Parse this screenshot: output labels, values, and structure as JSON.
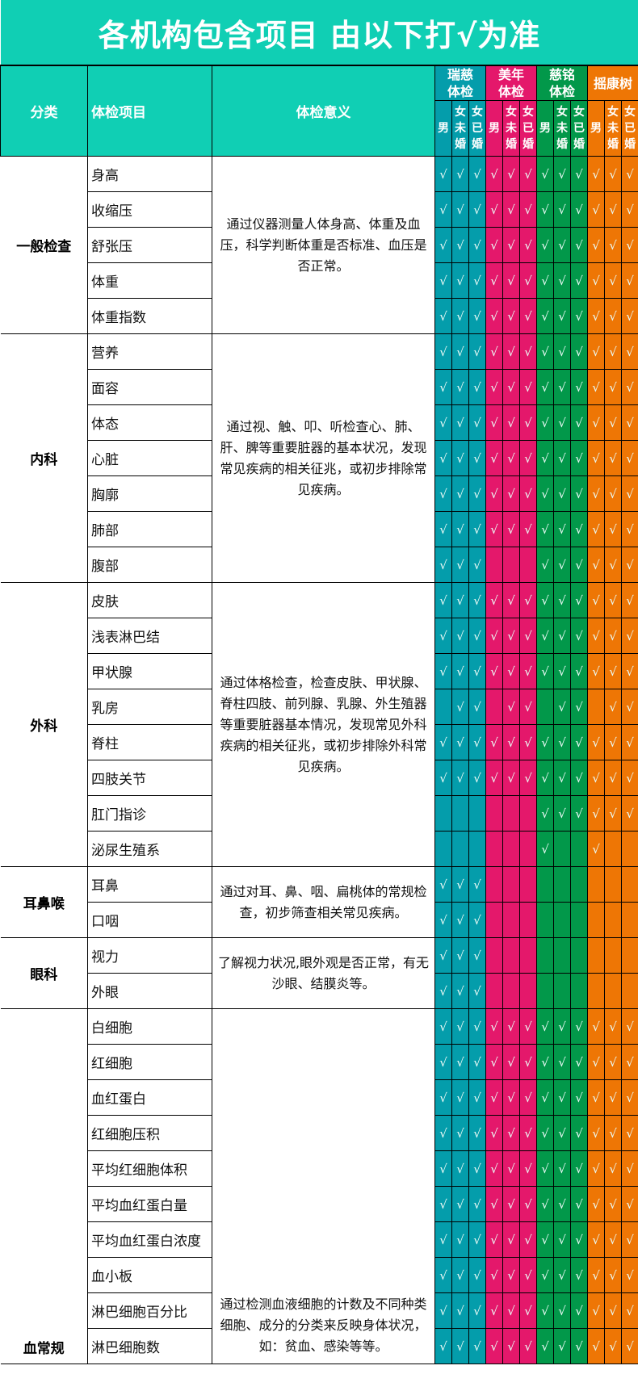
{
  "title": "各机构包含项目 由以下打√为准",
  "headers": {
    "category": "分类",
    "item": "体检项目",
    "meaning": "体检意义"
  },
  "orgs": [
    {
      "name": "瑞慈体检",
      "color": "#049dab"
    },
    {
      "name": "美年体检",
      "color": "#e4186b"
    },
    {
      "name": "慈铭体检",
      "color": "#02984a"
    },
    {
      "name": "摇康树",
      "color": "#ee7605"
    }
  ],
  "subheaders": [
    "男",
    "女未婚",
    "女已婚"
  ],
  "check_mark": "√",
  "header_bg": "#10cfb4",
  "groups": [
    {
      "category": "一般检查",
      "description": "通过仪器测量人体身高、体重及血压，科学判断体重是否标准、血压是否正常。",
      "items": [
        {
          "name": "身高",
          "checks": "111111111111"
        },
        {
          "name": "收缩压",
          "checks": "111111111111"
        },
        {
          "name": "舒张压",
          "checks": "111111111111"
        },
        {
          "name": "体重",
          "checks": "111111111111"
        },
        {
          "name": "体重指数",
          "checks": "111111111111"
        }
      ]
    },
    {
      "category": "内科",
      "description": "通过视、触、叩、听检查心、肺、肝、脾等重要脏器的基本状况，发现常见疾病的相关征兆，或初步排除常见疾病。",
      "items": [
        {
          "name": "营养",
          "checks": "111111111111"
        },
        {
          "name": "面容",
          "checks": "111111111111"
        },
        {
          "name": "体态",
          "checks": "111111111111"
        },
        {
          "name": "心脏",
          "checks": "111111111111"
        },
        {
          "name": "胸廓",
          "checks": "111111111111"
        },
        {
          "name": "肺部",
          "checks": "111111111111"
        },
        {
          "name": "腹部",
          "checks": "111000111111"
        }
      ]
    },
    {
      "category": "外科",
      "description": "通过体格检查，检查皮肤、甲状腺、脊柱四肢、前列腺、乳腺、外生殖器等重要脏器基本情况，发现常见外科疾病的相关征兆，或初步排除外科常见疾病。",
      "items": [
        {
          "name": "皮肤",
          "checks": "111111111111"
        },
        {
          "name": "浅表淋巴结",
          "checks": "111111111111"
        },
        {
          "name": "甲状腺",
          "checks": "111111111111"
        },
        {
          "name": "乳房",
          "checks": "011011011011"
        },
        {
          "name": "脊柱",
          "checks": "111111111111"
        },
        {
          "name": "四肢关节",
          "checks": "111111111111"
        },
        {
          "name": "肛门指诊",
          "checks": "000000111111"
        },
        {
          "name": "泌尿生殖系",
          "checks": "000000100100"
        }
      ]
    },
    {
      "category": "耳鼻喉",
      "description": "通过对耳、鼻、咽、扁桃体的常规检查，初步筛查相关常见疾病。",
      "items": [
        {
          "name": "耳鼻",
          "checks": "111000000000"
        },
        {
          "name": "口咽",
          "checks": "111000000000"
        }
      ]
    },
    {
      "category": "眼科",
      "description": "了解视力状况,眼外观是否正常，有无沙眼、结膜炎等。",
      "items": [
        {
          "name": "视力",
          "checks": "111000000000"
        },
        {
          "name": "外眼",
          "checks": "111000000000"
        }
      ]
    },
    {
      "category": "血常规",
      "description": "通过检测血液细胞的计数及不同种类细胞、成分的分类来反映身体状况，如：贫血、感染等等。",
      "items": [
        {
          "name": "白细胞",
          "checks": "111111111111"
        },
        {
          "name": "红细胞",
          "checks": "111111111111"
        },
        {
          "name": "血红蛋白",
          "checks": "111111111111"
        },
        {
          "name": "红细胞压积",
          "checks": "111111111111"
        },
        {
          "name": "平均红细胞体积",
          "checks": "111111111111"
        },
        {
          "name": "平均血红蛋白量",
          "checks": "111111111111"
        },
        {
          "name": "平均血红蛋白浓度",
          "checks": "111111111111"
        },
        {
          "name": "血小板",
          "checks": "111111111111"
        },
        {
          "name": "淋巴细胞百分比",
          "checks": "111111111111"
        },
        {
          "name": "淋巴细胞数",
          "checks": "111111111111"
        }
      ]
    }
  ]
}
